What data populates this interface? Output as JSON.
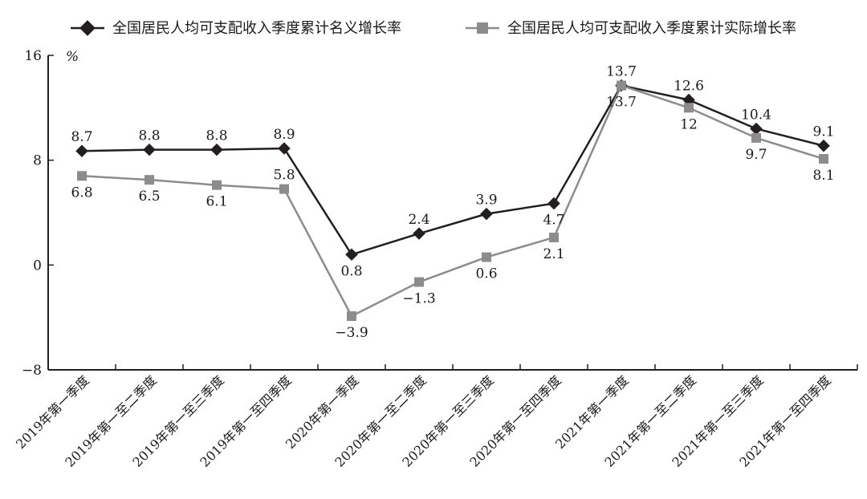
{
  "chart_data": {
    "type": "line",
    "categories": [
      "2019年第一季度",
      "2019年第一至二季度",
      "2019年第一至三季度",
      "2019年第一至四季度",
      "2020年第一季度",
      "2020年第一至二季度",
      "2020年第一至三季度",
      "2020年第一至四季度",
      "2021年第一季度",
      "2021年第一至二季度",
      "2021年第一至三季度",
      "2021年第一至四季度"
    ],
    "series": [
      {
        "name": "全国居民人均可支配收入季度累计名义增长率",
        "values": [
          8.7,
          8.8,
          8.8,
          8.9,
          0.8,
          2.4,
          3.9,
          4.7,
          13.7,
          12.6,
          10.4,
          9.1
        ],
        "labels": [
          "8.7",
          "8.8",
          "8.8",
          "8.9",
          "0.8",
          "2.4",
          "3.9",
          "4.7",
          "13.7",
          "12.6",
          "10.4",
          "9.1"
        ],
        "color": "#231f20",
        "marker": "diamond"
      },
      {
        "name": "全国居民人均可支配收入季度累计实际增长率",
        "values": [
          6.8,
          6.5,
          6.1,
          5.8,
          -3.9,
          -1.3,
          0.6,
          2.1,
          13.7,
          12,
          9.7,
          8.1
        ],
        "labels": [
          "6.8",
          "6.5",
          "6.1",
          "5.8",
          "−3.9",
          "−1.3",
          "0.6",
          "2.1",
          "13.7",
          "12",
          "9.7",
          "8.1"
        ],
        "color": "#8c8c8c",
        "marker": "square"
      }
    ],
    "yticks": [
      "16",
      "8",
      "0",
      "−8"
    ],
    "ytick_values": [
      16,
      8,
      0,
      -8
    ],
    "ylim": [
      -8,
      16
    ],
    "y_unit": "%",
    "grid": false,
    "legend_position": "top"
  }
}
